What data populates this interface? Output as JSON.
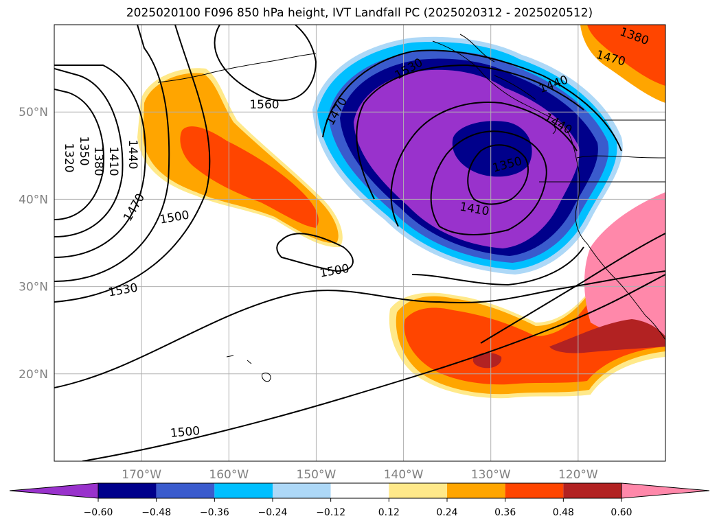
{
  "chart_data": {
    "type": "heatmap",
    "title": "2025020100 F096 850 hPa height, IVT Landfall PC (2025020312 - 2025020512)",
    "map": {
      "lon_range": [
        -180,
        -110
      ],
      "lat_range": [
        10,
        60
      ],
      "gridlines": true,
      "lon_ticks": [
        -170,
        -160,
        -150,
        -140,
        -130,
        -120
      ],
      "lon_tick_labels": [
        "170°W",
        "160°W",
        "150°W",
        "140°W",
        "130°W",
        "120°W"
      ],
      "lat_ticks": [
        20,
        30,
        40,
        50
      ],
      "lat_tick_labels": [
        "20°N",
        "30°N",
        "40°N",
        "50°N"
      ]
    },
    "colorbar": {
      "orientation": "horizontal",
      "placement": "bottom",
      "extend": "both",
      "levels": [
        -0.6,
        -0.48,
        -0.36,
        -0.24,
        -0.12,
        0.12,
        0.24,
        0.36,
        0.48,
        0.6
      ],
      "tick_labels": [
        "−0.60",
        "−0.48",
        "−0.36",
        "−0.24",
        "−0.12",
        "0.12",
        "0.24",
        "0.36",
        "0.48",
        "0.60"
      ],
      "colors": [
        "#9932cc",
        "#00008b",
        "#3a5bcd",
        "#00bfff",
        "#add8f7",
        "#ffffff",
        "#ffe98a",
        "#ffa500",
        "#ff4500",
        "#b22222",
        "#ff88aa"
      ]
    },
    "shaded_features": [
      {
        "name": "negative-pc-center",
        "center_lon": -133,
        "center_lat": 44,
        "min_level": -0.6
      },
      {
        "name": "positive-pc-band-north",
        "center_lon": -160,
        "center_lat": 46,
        "max_level": 0.48
      },
      {
        "name": "positive-pc-band-subtropical",
        "center_lon": -132,
        "center_lat": 25,
        "max_level": 0.6
      },
      {
        "name": "positive-pc-california",
        "center_lon": -115,
        "center_lat": 30,
        "max_level": 0.6
      },
      {
        "name": "positive-pc-northeast",
        "center_lon": -113,
        "center_lat": 57,
        "max_level": 0.48
      }
    ],
    "contour_labels": [
      "1320",
      "1350",
      "1380",
      "1410",
      "1440",
      "1470",
      "1500",
      "1530",
      "1560",
      "1500",
      "1470",
      "1530",
      "1410",
      "1350",
      "1440",
      "1470",
      "1440",
      "1380",
      "1500"
    ]
  }
}
